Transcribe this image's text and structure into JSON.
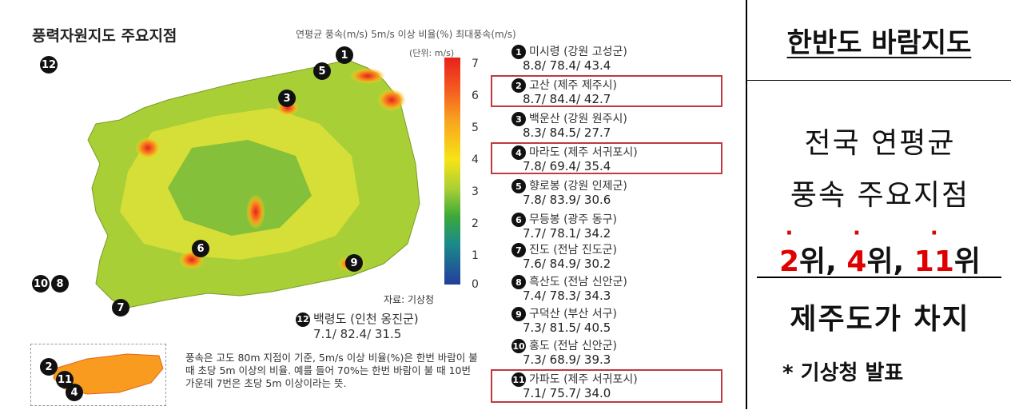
{
  "map_title": "풍력자원지도 주요지점",
  "map_subtitle": "연평균 풍속(m/s)  5m/s 이상 비율(%)  최대풍속(m/s)",
  "unit_label": "(단위: m/s)",
  "scale_ticks": [
    "7",
    "6",
    "5",
    "4",
    "3",
    "2",
    "1",
    "0"
  ],
  "source": "자료: 기상청",
  "note": "풍속은 고도 80m 지점이 기준, 5m/s 이상 비율(%)은 한번 바람이 불 때 초당 5m 이상의 비율. 예를 들어 70%는 한번 바람이 불 때 10번 가운데 7번은 초당 5m 이상이라는 뜻.",
  "stations": [
    {
      "num": "1",
      "name": "미시령 (강원 고성군)",
      "value": "8.8/ 78.4/ 43.4"
    },
    {
      "num": "2",
      "name": "고산 (제주 제주시)",
      "value": "8.7/ 84.4/ 42.7"
    },
    {
      "num": "3",
      "name": "백운산 (강원 원주시)",
      "value": "8.3/ 84.5/ 27.7"
    },
    {
      "num": "4",
      "name": "마라도 (제주 서귀포시)",
      "value": "7.8/ 69.4/ 35.4"
    },
    {
      "num": "5",
      "name": "향로봉 (강원 인제군)",
      "value": "7.8/ 83.9/ 30.6"
    },
    {
      "num": "6",
      "name": "무등봉 (광주 동구)",
      "value": "7.7/ 78.1/ 34.2"
    },
    {
      "num": "7",
      "name": "진도 (전남 진도군)",
      "value": "7.6/ 84.9/ 30.2"
    },
    {
      "num": "8",
      "name": "흑산도 (전남 신안군)",
      "value": "7.4/ 78.3/ 34.3"
    },
    {
      "num": "9",
      "name": "구덕산 (부산 서구)",
      "value": "7.3/ 81.5/ 40.5"
    },
    {
      "num": "10",
      "name": "홍도 (전남 신안군)",
      "value": "7.3/ 68.9/ 39.3"
    },
    {
      "num": "11",
      "name": "가파도 (제주 서귀포시)",
      "value": "7.1/ 75.7/ 34.0"
    }
  ],
  "station12": {
    "num": "12",
    "name": "백령도 (인천 옹진군)",
    "value": "7.1/ 82.4/ 31.5"
  },
  "map_markers": [
    "1",
    "2",
    "3",
    "4",
    "5",
    "6",
    "7",
    "8",
    "9",
    "10",
    "11",
    "12"
  ],
  "right": {
    "title": "한반도 바람지도",
    "line1": "전국 연평균",
    "line2": "풍속 주요지점",
    "rank_2": "2",
    "rank_2_suffix": "위, ",
    "rank_4": "4",
    "rank_4_suffix": "위, ",
    "rank_11": "11",
    "rank_11_suffix": "위",
    "line3": "제주도가 차지",
    "note": "* 기상청 발표"
  }
}
